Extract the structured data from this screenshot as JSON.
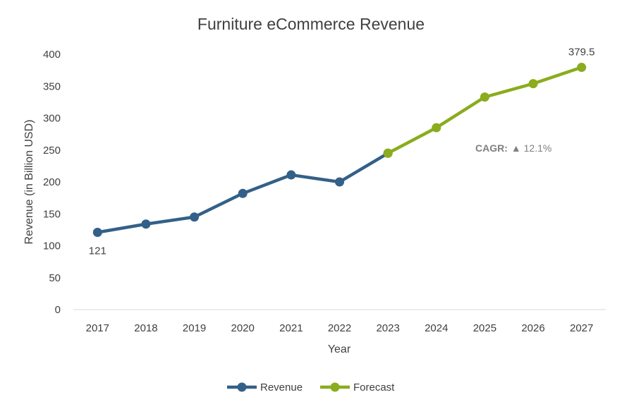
{
  "colors": {
    "revenue": "#336088",
    "forecast": "#8aac1d",
    "axis": "#d9d9d9",
    "text": "#404040",
    "annotation": "#7f7f7f"
  },
  "chart_data": {
    "type": "line",
    "title": "Furniture eCommerce Revenue",
    "xlabel": "Year",
    "ylabel": "Revenue (in Billion USD)",
    "categories": [
      "2017",
      "2018",
      "2019",
      "2020",
      "2021",
      "2022",
      "2023",
      "2024",
      "2025",
      "2026",
      "2027"
    ],
    "ylim": [
      0,
      400
    ],
    "yticks": [
      0,
      50,
      100,
      150,
      200,
      250,
      300,
      350,
      400
    ],
    "grid": false,
    "legend_position": "bottom",
    "series": [
      {
        "name": "Revenue",
        "color": "#336088",
        "x": [
          "2017",
          "2018",
          "2019",
          "2020",
          "2021",
          "2022",
          "2023"
        ],
        "values": [
          121,
          134,
          145,
          182,
          211,
          200,
          245
        ]
      },
      {
        "name": "Forecast",
        "color": "#8aac1d",
        "x": [
          "2023",
          "2024",
          "2025",
          "2026",
          "2027"
        ],
        "values": [
          245,
          285,
          333,
          354,
          379.5
        ]
      }
    ],
    "data_labels": [
      {
        "category": "2017",
        "value": 121,
        "text": "121"
      },
      {
        "category": "2027",
        "value": 379.5,
        "text": "379.5"
      }
    ],
    "annotation": {
      "label": "CAGR:",
      "text": "▲ 12.1%"
    }
  }
}
